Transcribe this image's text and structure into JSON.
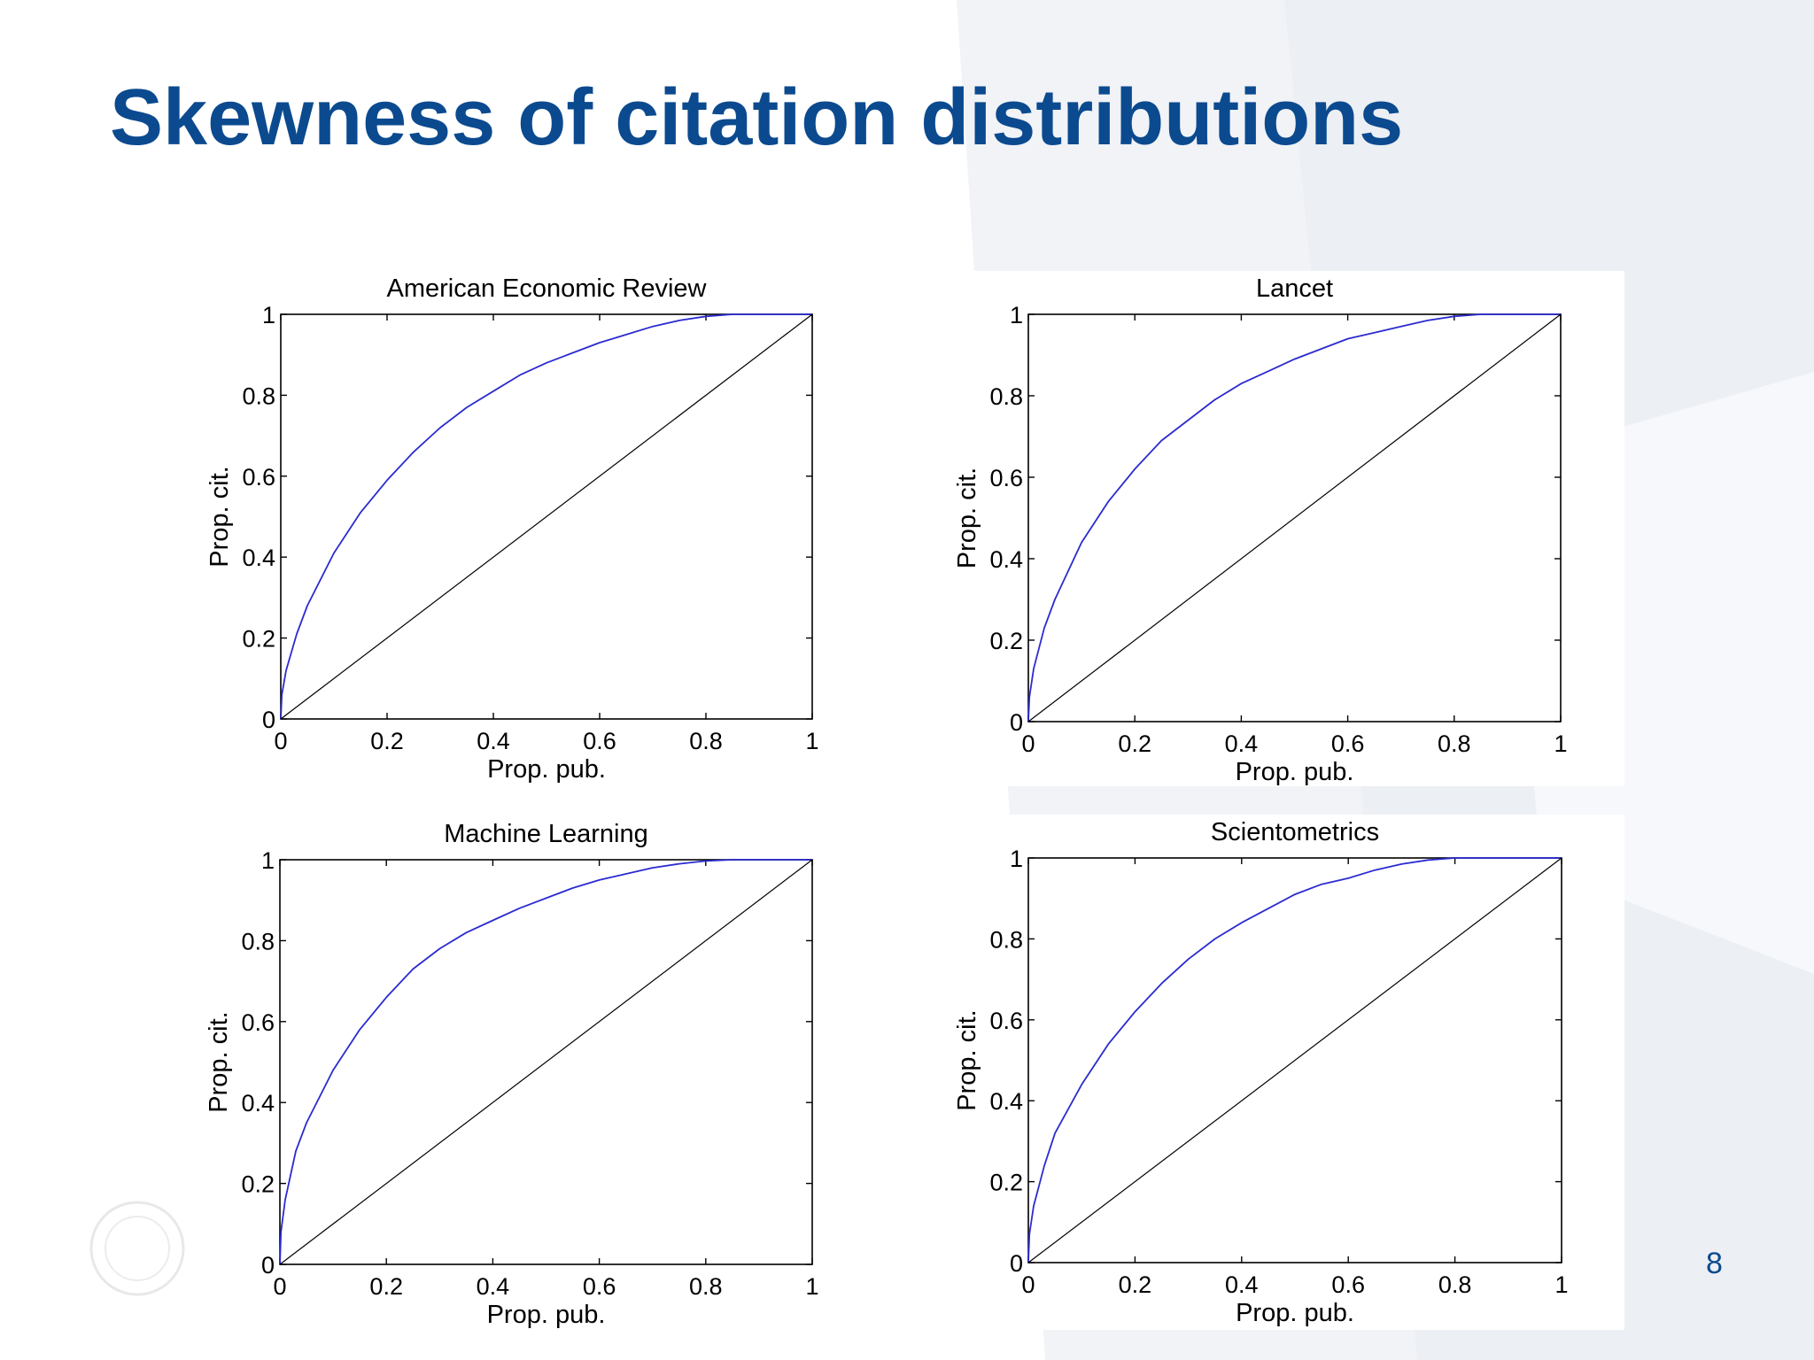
{
  "slide": {
    "title": "Skewness of citation distributions",
    "page_number": "8"
  },
  "colors": {
    "title": "#0b4a8f",
    "curve": "#2b2bd0",
    "diagonal": "#000000",
    "background_shape": "#edf0f5"
  },
  "chart_data": [
    {
      "type": "line",
      "title": "American Economic Review",
      "xlabel": "Prop. pub.",
      "ylabel": "Prop. cit.",
      "xlim": [
        0,
        1
      ],
      "ylim": [
        0,
        1
      ],
      "xticks": [
        "0",
        "0.2",
        "0.4",
        "0.6",
        "0.8",
        "1"
      ],
      "yticks": [
        "0",
        "0.2",
        "0.4",
        "0.6",
        "0.8",
        "1"
      ],
      "grid": false,
      "series": [
        {
          "role": "curve",
          "x": [
            0,
            0.002,
            0.01,
            0.03,
            0.05,
            0.1,
            0.15,
            0.2,
            0.25,
            0.3,
            0.35,
            0.4,
            0.45,
            0.5,
            0.55,
            0.6,
            0.65,
            0.7,
            0.75,
            0.8,
            0.85,
            1
          ],
          "y": [
            0,
            0.06,
            0.12,
            0.21,
            0.28,
            0.41,
            0.51,
            0.59,
            0.66,
            0.72,
            0.77,
            0.81,
            0.85,
            0.88,
            0.905,
            0.93,
            0.95,
            0.97,
            0.985,
            0.995,
            1.0,
            1.0
          ]
        },
        {
          "role": "diagonal",
          "x": [
            0,
            1
          ],
          "y": [
            0,
            1
          ]
        }
      ]
    },
    {
      "type": "line",
      "title": "Lancet",
      "xlabel": "Prop. pub.",
      "ylabel": "Prop. cit.",
      "xlim": [
        0,
        1
      ],
      "ylim": [
        0,
        1
      ],
      "xticks": [
        "0",
        "0.2",
        "0.4",
        "0.6",
        "0.8",
        "1"
      ],
      "yticks": [
        "0",
        "0.2",
        "0.4",
        "0.6",
        "0.8",
        "1"
      ],
      "grid": false,
      "series": [
        {
          "role": "curve",
          "x": [
            0,
            0.002,
            0.01,
            0.03,
            0.05,
            0.1,
            0.15,
            0.2,
            0.25,
            0.3,
            0.35,
            0.4,
            0.45,
            0.5,
            0.55,
            0.6,
            0.65,
            0.7,
            0.75,
            0.8,
            0.85,
            1
          ],
          "y": [
            0,
            0.06,
            0.13,
            0.23,
            0.3,
            0.44,
            0.54,
            0.62,
            0.69,
            0.74,
            0.79,
            0.83,
            0.86,
            0.89,
            0.915,
            0.94,
            0.955,
            0.97,
            0.985,
            0.995,
            1.0,
            1.0
          ]
        },
        {
          "role": "diagonal",
          "x": [
            0,
            1
          ],
          "y": [
            0,
            1
          ]
        }
      ]
    },
    {
      "type": "line",
      "title": "Machine Learning",
      "xlabel": "Prop. pub.",
      "ylabel": "Prop. cit.",
      "xlim": [
        0,
        1
      ],
      "ylim": [
        0,
        1
      ],
      "xticks": [
        "0",
        "0.2",
        "0.4",
        "0.6",
        "0.8",
        "1"
      ],
      "yticks": [
        "0",
        "0.2",
        "0.4",
        "0.6",
        "0.8",
        "1"
      ],
      "grid": false,
      "series": [
        {
          "role": "curve",
          "x": [
            0,
            0.002,
            0.01,
            0.03,
            0.05,
            0.1,
            0.15,
            0.2,
            0.25,
            0.3,
            0.35,
            0.4,
            0.45,
            0.5,
            0.55,
            0.6,
            0.65,
            0.7,
            0.75,
            0.8,
            0.85,
            1
          ],
          "y": [
            0,
            0.08,
            0.16,
            0.28,
            0.35,
            0.48,
            0.58,
            0.66,
            0.73,
            0.78,
            0.82,
            0.85,
            0.88,
            0.905,
            0.93,
            0.95,
            0.965,
            0.98,
            0.99,
            0.997,
            1.0,
            1.0
          ]
        },
        {
          "role": "diagonal",
          "x": [
            0,
            1
          ],
          "y": [
            0,
            1
          ]
        }
      ]
    },
    {
      "type": "line",
      "title": "Scientometrics",
      "xlabel": "Prop. pub.",
      "ylabel": "Prop. cit.",
      "xlim": [
        0,
        1
      ],
      "ylim": [
        0,
        1
      ],
      "xticks": [
        "0",
        "0.2",
        "0.4",
        "0.6",
        "0.8",
        "1"
      ],
      "yticks": [
        "0",
        "0.2",
        "0.4",
        "0.6",
        "0.8",
        "1"
      ],
      "grid": false,
      "series": [
        {
          "role": "curve",
          "x": [
            0,
            0.002,
            0.01,
            0.03,
            0.05,
            0.1,
            0.15,
            0.2,
            0.25,
            0.3,
            0.35,
            0.4,
            0.45,
            0.5,
            0.55,
            0.6,
            0.65,
            0.7,
            0.75,
            0.8,
            0.85,
            1
          ],
          "y": [
            0,
            0.07,
            0.14,
            0.24,
            0.32,
            0.44,
            0.54,
            0.62,
            0.69,
            0.75,
            0.8,
            0.84,
            0.875,
            0.91,
            0.935,
            0.95,
            0.97,
            0.985,
            0.995,
            1.0,
            1.0,
            1.0
          ]
        },
        {
          "role": "diagonal",
          "x": [
            0,
            1
          ],
          "y": [
            0,
            1
          ]
        }
      ]
    }
  ]
}
